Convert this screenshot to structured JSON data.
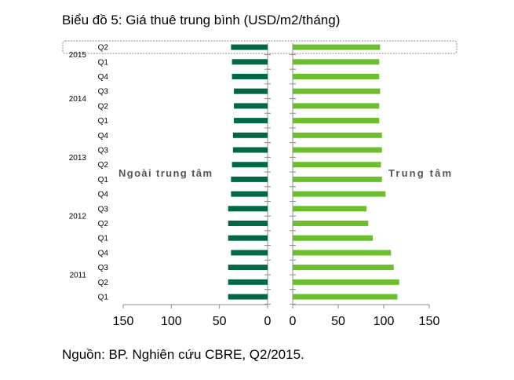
{
  "chart_data": {
    "type": "bar",
    "orientation": "horizontal-butterfly",
    "title": "Biểu đồ 5: Giá thuê trung bình (USD/m2/tháng)",
    "source": "Nguồn: BP. Nghiên cứu CBRE, Q2/2015.",
    "categories": [
      {
        "year": "2011",
        "quarter": "Q1"
      },
      {
        "year": "2011",
        "quarter": "Q2"
      },
      {
        "year": "2011",
        "quarter": "Q3"
      },
      {
        "year": "2011",
        "quarter": "Q4"
      },
      {
        "year": "2012",
        "quarter": "Q1"
      },
      {
        "year": "2012",
        "quarter": "Q2"
      },
      {
        "year": "2012",
        "quarter": "Q3"
      },
      {
        "year": "2012",
        "quarter": "Q4"
      },
      {
        "year": "2013",
        "quarter": "Q1"
      },
      {
        "year": "2013",
        "quarter": "Q2"
      },
      {
        "year": "2013",
        "quarter": "Q3"
      },
      {
        "year": "2013",
        "quarter": "Q4"
      },
      {
        "year": "2014",
        "quarter": "Q1"
      },
      {
        "year": "2014",
        "quarter": "Q2"
      },
      {
        "year": "2014",
        "quarter": "Q3"
      },
      {
        "year": "2014",
        "quarter": "Q4"
      },
      {
        "year": "2015",
        "quarter": "Q1"
      },
      {
        "year": "2015",
        "quarter": "Q2"
      }
    ],
    "year_labels": [
      "2011",
      "2012",
      "2013",
      "2014",
      "2015"
    ],
    "series": [
      {
        "name": "Ngoài trung tâm",
        "color": "#006747",
        "side": "left",
        "values": [
          41,
          41,
          41,
          38,
          41,
          41,
          41,
          38,
          38,
          37,
          36,
          36,
          35,
          35,
          35,
          37,
          37,
          38
        ]
      },
      {
        "name": "Trung tâm",
        "color": "#6cbe2f",
        "side": "right",
        "values": [
          115,
          117,
          111,
          108,
          88,
          83,
          81,
          102,
          98,
          97,
          98,
          98,
          95,
          95,
          96,
          95,
          95,
          96
        ]
      }
    ],
    "left_axis": {
      "ticks": [
        150,
        100,
        50,
        0
      ],
      "xlim": [
        0,
        150
      ]
    },
    "right_axis": {
      "ticks": [
        0,
        50,
        100,
        150
      ],
      "xlim": [
        0,
        150
      ]
    },
    "highlight_category": {
      "year": "2015",
      "quarter": "Q2"
    },
    "grid": false
  }
}
